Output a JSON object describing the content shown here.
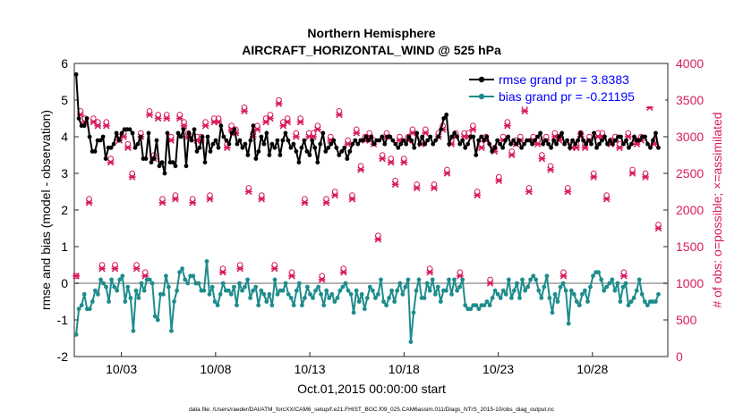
{
  "chart_data": {
    "type": "line",
    "title": "Northern Hemisphere",
    "subtitle": "AIRCRAFT_HORIZONTAL_WIND @ 525 hPa",
    "xlabel": "Oct.01,2015 00:00:00 start",
    "ylabel_left": "rmse and bias (model - observation)",
    "ylabel_right": "# of obs: o=possible; ×=assimilated",
    "footnote": "data file: /Users/raeder/DAI/ATM_forcXX/CAM6_setup/f.e21.FHIST_BGC.f09_025.CAM6assim.011/Diags_NTrS_2015-10/obs_diag_output.nc",
    "x_range_days": [
      0.5,
      32
    ],
    "x_tick_values": [
      3,
      8,
      13,
      18,
      23,
      28
    ],
    "x_tick_labels": [
      "10/03",
      "10/08",
      "10/13",
      "10/18",
      "10/23",
      "10/28"
    ],
    "ylim_left": [
      -2,
      6
    ],
    "y_ticks_left": [
      "-2",
      "-1",
      "0",
      "1",
      "2",
      "3",
      "4",
      "5",
      "6"
    ],
    "ylim_right": [
      0,
      4000
    ],
    "y_ticks_right": [
      "0",
      "500",
      "1000",
      "1500",
      "2000",
      "2500",
      "3000",
      "3500",
      "4000"
    ],
    "colors": {
      "rmse": "#000000",
      "bias": "#1e8c8c",
      "obs": "#d81b60",
      "zero_line": "#b4b4b4",
      "legend_text": "#0000ff"
    },
    "series": [
      {
        "name": "rmse",
        "legend": "rmse grand pr = 3.8383",
        "values": [
          5.7,
          4.5,
          4.3,
          4.3,
          4.5,
          4.0,
          3.6,
          3.6,
          3.9,
          3.9,
          4.0,
          3.4,
          3.7,
          3.7,
          3.8,
          4.1,
          3.9,
          4.1,
          4.2,
          4.2,
          4.2,
          4.1,
          3.7,
          3.8,
          4.0,
          3.4,
          3.4,
          4.1,
          3.3,
          3.4,
          3.9,
          3.2,
          3.3,
          3.0,
          4.1,
          3.3,
          3.3,
          3.2,
          4.1,
          4.0,
          4.2,
          3.2,
          4.1,
          3.9,
          4.2,
          3.6,
          3.7,
          4.0,
          3.3,
          4.0,
          3.6,
          3.8,
          3.9,
          3.7,
          4.3,
          4.0,
          3.9,
          3.8,
          4.1,
          4.2,
          3.8,
          3.9,
          3.7,
          3.8,
          3.5,
          3.9,
          4.3,
          3.4,
          3.6,
          4.0,
          3.8,
          4.1,
          3.5,
          3.8,
          3.7,
          3.9,
          3.5,
          3.9,
          4.1,
          3.9,
          3.7,
          3.8,
          3.6,
          3.3,
          3.7,
          3.9,
          3.6,
          3.5,
          3.9,
          3.7,
          3.3,
          3.8,
          4.1,
          3.6,
          3.7,
          3.8,
          3.9,
          3.7,
          3.5,
          3.6,
          3.7,
          3.4,
          3.6,
          3.8,
          3.9,
          3.8,
          3.9,
          3.9,
          4.0,
          3.9,
          4.0,
          3.8,
          3.9,
          3.9,
          4.0,
          3.8,
          4.0,
          4.0,
          3.9,
          3.8,
          3.7,
          3.8,
          3.9,
          3.8,
          4.0,
          3.9,
          3.7,
          4.1,
          3.8,
          4.0,
          3.8,
          3.9,
          4.0,
          3.8,
          3.9,
          4.0,
          4.2,
          4.5,
          4.6,
          3.8,
          4.0,
          4.1,
          4.0,
          3.8,
          3.9,
          3.7,
          3.8,
          4.0,
          4.0,
          3.5,
          3.9,
          4.0,
          3.9,
          4.0,
          3.8,
          3.6,
          3.7,
          3.9,
          3.8,
          3.7,
          3.9,
          4.0,
          3.8,
          3.9,
          3.8,
          3.9,
          3.7,
          3.8,
          3.9,
          3.9,
          3.8,
          3.9,
          4.0,
          4.1,
          3.8,
          3.9,
          3.8,
          3.7,
          3.9,
          3.8,
          4.0,
          4.1,
          3.8,
          3.9,
          3.7,
          3.9,
          3.8,
          3.9,
          4.1,
          3.9,
          3.8,
          3.9,
          3.8,
          4.1,
          3.7,
          3.8,
          3.9,
          4.0,
          3.8,
          3.9,
          3.8,
          3.9,
          4.0,
          4.0,
          3.8,
          3.9,
          3.7,
          3.8,
          4.0,
          3.9,
          3.9,
          4.0,
          4.0,
          3.8,
          3.7,
          3.9,
          4.1,
          3.7
        ]
      },
      {
        "name": "bias",
        "legend": "bias grand pr = -0.21195",
        "values": [
          -1.4,
          -0.7,
          -0.6,
          -0.3,
          -0.7,
          -0.7,
          -0.5,
          -0.2,
          -0.3,
          0.1,
          0.0,
          -0.1,
          -0.5,
          0.1,
          -0.1,
          -0.2,
          0.1,
          0.2,
          -0.5,
          -0.1,
          -0.4,
          -1.3,
          -0.2,
          -0.4,
          0.0,
          -0.2,
          0.1,
          0.1,
          0.0,
          -0.9,
          -1.0,
          -0.3,
          -0.3,
          0.2,
          -0.1,
          -1.3,
          -0.5,
          -0.2,
          0.3,
          0.4,
          0.1,
          0.0,
          0.2,
          0.2,
          0.0,
          0.0,
          -0.2,
          -0.2,
          0.6,
          -0.3,
          -0.1,
          -0.5,
          -0.6,
          -0.3,
          0.0,
          -0.2,
          -0.2,
          -0.3,
          -0.1,
          -0.6,
          0.0,
          -0.2,
          -0.1,
          0.1,
          -0.4,
          -0.2,
          -0.1,
          -0.6,
          -0.2,
          -0.3,
          -0.5,
          -0.3,
          -0.6,
          0.1,
          -0.3,
          -0.2,
          -0.2,
          0.0,
          -0.3,
          -0.4,
          -0.6,
          -0.2,
          0.0,
          -0.6,
          -0.4,
          -0.1,
          -0.3,
          -0.4,
          -0.2,
          -0.1,
          -0.3,
          -0.6,
          -0.2,
          -0.4,
          -0.3,
          -0.5,
          -0.4,
          -0.2,
          -0.1,
          0.0,
          -0.2,
          -0.3,
          -0.8,
          -0.2,
          -0.5,
          -0.3,
          -0.7,
          -0.4,
          -0.1,
          -0.2,
          -0.4,
          -0.3,
          0.1,
          -0.5,
          -0.6,
          -0.4,
          -0.2,
          -0.5,
          -0.2,
          0.0,
          -0.3,
          -0.1,
          0.1,
          -1.6,
          -0.8,
          -0.2,
          0.1,
          -0.4,
          -0.4,
          0.0,
          -0.2,
          0.1,
          -0.3,
          -0.1,
          -0.5,
          -0.2,
          -0.2,
          0.1,
          -0.3,
          0.1,
          -0.2,
          -0.1,
          0.1,
          -0.6,
          -0.7,
          -0.7,
          -0.6,
          -0.6,
          -0.7,
          -0.6,
          -0.6,
          -0.5,
          -0.6,
          -0.4,
          -0.2,
          -0.3,
          -0.4,
          -0.2,
          -0.3,
          0.1,
          -0.4,
          -0.2,
          0.0,
          -0.4,
          0.1,
          -0.2,
          -0.1,
          0.1,
          0.2,
          0.1,
          -0.2,
          -0.4,
          -0.1,
          0.2,
          -0.4,
          -0.8,
          -0.3,
          -0.5,
          -0.1,
          0.0,
          -0.2,
          -1.1,
          -0.2,
          -0.3,
          -0.5,
          -0.6,
          -0.3,
          -0.2,
          -0.5,
          -0.1,
          0.2,
          0.3,
          0.3,
          0.1,
          -0.2,
          -0.1,
          0.0,
          0.1,
          -0.2,
          0.0,
          -0.5,
          -0.1,
          0.0,
          -0.6,
          -0.5,
          -0.4,
          -0.2,
          0.1,
          -0.3,
          -0.5,
          -0.6,
          -0.5,
          -0.5,
          -0.5,
          -0.3
        ]
      },
      {
        "name": "obs_possible",
        "marker": "o",
        "values": [
          1100,
          3350,
          3250,
          2150,
          3250,
          3200,
          1250,
          3200,
          2700,
          1250,
          3000,
          3050,
          2900,
          2500,
          1250,
          3050,
          1150,
          3350,
          2750,
          3300,
          2150,
          3300,
          3000,
          2200,
          3300,
          3200,
          3050,
          2150,
          3000,
          3000,
          3200,
          2200,
          3250,
          3250,
          1200,
          2900,
          3150,
          3100,
          1250,
          3400,
          2300,
          3050,
          3150,
          2200,
          3250,
          3300,
          1250,
          3500,
          3200,
          3250,
          1150,
          3050,
          3250,
          2150,
          3050,
          3050,
          3150,
          1100,
          2150,
          3000,
          2250,
          3350,
          1200,
          2950,
          2200,
          3100,
          2600,
          3000,
          3050,
          2950,
          1650,
          2750,
          3050,
          2700,
          2400,
          3000,
          2700,
          3000,
          3100,
          2350,
          2950,
          3100,
          1200,
          2350,
          3050,
          3150,
          2550,
          2950,
          3050,
          1150,
          3050,
          3050,
          3150,
          2250,
          2900,
          3000,
          1050,
          2850,
          2450,
          3000,
          3200,
          2800,
          2950,
          3000,
          3400,
          2300,
          3000,
          2950,
          2750,
          3000,
          2600,
          3050,
          3000,
          1150,
          2300,
          2900,
          2900,
          3050,
          2900,
          3000,
          2500,
          3050,
          3050,
          2200,
          2950,
          3000,
          2900,
          1150,
          3050,
          2550,
          2950,
          3000,
          2500,
          3450,
          2950,
          1800
        ]
      },
      {
        "name": "obs_assimilated",
        "marker": "x",
        "values": [
          1100,
          3300,
          3200,
          2100,
          3200,
          3150,
          1200,
          3150,
          2650,
          1200,
          2950,
          3000,
          2850,
          2450,
          1200,
          3000,
          1100,
          3300,
          2700,
          3250,
          2100,
          3250,
          2950,
          2150,
          3250,
          3150,
          3000,
          2100,
          2950,
          2950,
          3150,
          2150,
          3200,
          3200,
          1150,
          2850,
          3100,
          3050,
          1200,
          3350,
          2250,
          3000,
          3100,
          2150,
          3200,
          3250,
          1200,
          3450,
          3150,
          3200,
          1100,
          3000,
          3200,
          2100,
          3000,
          3000,
          3100,
          1050,
          2100,
          2950,
          2200,
          3300,
          1150,
          2900,
          2150,
          3050,
          2550,
          2950,
          3000,
          2900,
          1600,
          2700,
          3000,
          2650,
          2350,
          2950,
          2650,
          2950,
          3050,
          2300,
          2900,
          3050,
          1150,
          2300,
          3000,
          3100,
          2500,
          2900,
          3000,
          1100,
          3000,
          3000,
          3100,
          2200,
          2850,
          2950,
          1000,
          2800,
          2400,
          2950,
          3150,
          2750,
          2900,
          2950,
          3350,
          2250,
          2950,
          2900,
          2700,
          2950,
          2550,
          3000,
          2950,
          1100,
          2250,
          2850,
          2850,
          3000,
          2850,
          2950,
          2450,
          3000,
          3000,
          2150,
          2900,
          2950,
          2850,
          1100,
          3000,
          2500,
          2900,
          2950,
          2450,
          3400,
          2900,
          1750
        ]
      }
    ]
  }
}
